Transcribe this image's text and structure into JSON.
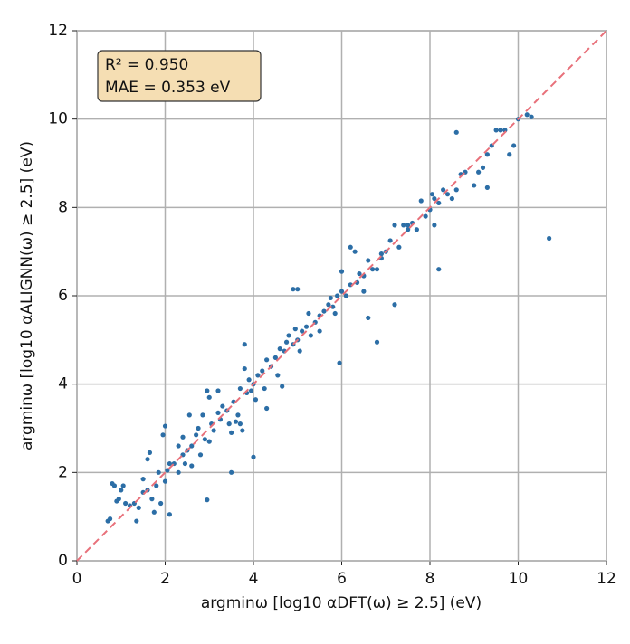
{
  "chart_data": {
    "type": "scatter",
    "xlabel": "argminω [log10 αDFT(ω) ≥ 2.5] (eV)",
    "ylabel": "argminω [log10 αALIGNN(ω) ≥ 2.5] (eV)",
    "annotations": [
      "R² = 0.950",
      "MAE = 0.353 eV"
    ],
    "xlim": [
      0,
      12
    ],
    "ylim": [
      0,
      12
    ],
    "xticks": [
      0,
      2,
      4,
      6,
      8,
      10,
      12
    ],
    "yticks": [
      0,
      2,
      4,
      6,
      8,
      10,
      12
    ],
    "grid": true,
    "color": "#2c6ea6",
    "reference_color": "#e8707a",
    "x": [
      0.7,
      0.75,
      0.8,
      0.85,
      0.95,
      1.0,
      1.05,
      0.9,
      1.1,
      1.2,
      1.3,
      1.35,
      1.4,
      1.5,
      1.5,
      1.6,
      1.6,
      1.65,
      1.7,
      1.75,
      1.8,
      1.85,
      1.9,
      1.95,
      2.0,
      2.0,
      2.05,
      2.1,
      2.1,
      2.2,
      2.3,
      2.3,
      2.4,
      2.45,
      2.5,
      2.55,
      2.6,
      2.6,
      2.7,
      2.75,
      2.8,
      2.85,
      2.9,
      2.95,
      3.0,
      3.0,
      3.05,
      3.1,
      3.2,
      3.25,
      3.3,
      3.4,
      3.45,
      3.5,
      3.55,
      3.6,
      3.65,
      3.7,
      3.7,
      3.75,
      3.8,
      3.8,
      3.85,
      3.9,
      3.95,
      4.0,
      4.05,
      4.1,
      4.2,
      4.25,
      4.3,
      4.4,
      4.5,
      4.55,
      4.6,
      4.65,
      4.7,
      4.75,
      4.8,
      4.9,
      4.95,
      5.0,
      5.05,
      5.1,
      5.2,
      5.25,
      5.3,
      5.4,
      5.5,
      5.5,
      5.6,
      5.7,
      5.8,
      5.85,
      5.9,
      6.0,
      6.0,
      6.1,
      6.2,
      6.3,
      6.35,
      6.4,
      6.5,
      6.5,
      6.6,
      6.7,
      6.8,
      6.9,
      7.0,
      7.1,
      7.2,
      7.3,
      7.4,
      7.5,
      7.6,
      7.7,
      7.8,
      7.9,
      8.0,
      8.05,
      8.1,
      8.2,
      8.3,
      8.4,
      8.5,
      8.6,
      8.7,
      8.8,
      9.0,
      9.3,
      9.4,
      9.7,
      10.0,
      8.1,
      7.5,
      6.9,
      6.2,
      4.3,
      3.2,
      2.4,
      5.75,
      10.7,
      8.2,
      9.3,
      7.2,
      6.8,
      6.6,
      5.95,
      4.0,
      3.5,
      2.95,
      8.6,
      4.9,
      5.0,
      9.9,
      10.2,
      10.3,
      9.6,
      9.5,
      9.8,
      9.1,
      9.2
    ],
    "y": [
      0.9,
      0.95,
      1.75,
      1.7,
      1.4,
      1.6,
      1.7,
      1.35,
      1.3,
      1.25,
      1.3,
      0.9,
      1.2,
      1.85,
      1.55,
      1.6,
      2.3,
      2.45,
      1.4,
      1.1,
      1.7,
      2.0,
      1.3,
      2.85,
      3.05,
      1.8,
      2.05,
      2.2,
      1.05,
      2.2,
      2.0,
      2.6,
      2.4,
      2.2,
      2.5,
      3.3,
      2.6,
      2.15,
      2.85,
      3.0,
      2.4,
      3.3,
      2.75,
      3.85,
      3.7,
      2.7,
      3.1,
      2.95,
      3.35,
      3.2,
      3.5,
      3.4,
      3.1,
      2.9,
      3.6,
      3.15,
      3.3,
      3.9,
      3.1,
      2.95,
      4.35,
      4.9,
      3.8,
      4.1,
      3.85,
      4.0,
      3.65,
      4.2,
      4.3,
      3.9,
      4.55,
      4.4,
      4.6,
      4.2,
      4.8,
      3.95,
      4.75,
      4.95,
      5.1,
      4.9,
      5.25,
      5.0,
      4.75,
      5.2,
      5.3,
      5.6,
      5.1,
      5.4,
      5.55,
      5.2,
      5.65,
      5.8,
      5.75,
      5.6,
      6.0,
      6.1,
      6.55,
      6.0,
      6.25,
      7.0,
      6.3,
      6.5,
      6.45,
      6.1,
      6.8,
      6.6,
      6.6,
      6.95,
      7.0,
      7.25,
      7.6,
      7.1,
      7.6,
      7.5,
      7.65,
      7.5,
      8.15,
      7.8,
      7.95,
      8.3,
      8.2,
      8.1,
      8.4,
      8.3,
      8.2,
      8.4,
      8.75,
      8.8,
      8.5,
      9.2,
      9.4,
      9.75,
      10.0,
      7.6,
      7.6,
      6.85,
      7.1,
      3.45,
      3.85,
      2.8,
      5.95,
      7.3,
      6.6,
      8.45,
      5.8,
      4.95,
      5.5,
      4.48,
      2.35,
      2.0,
      1.38,
      9.7,
      6.15,
      6.15,
      9.4,
      10.1,
      10.05,
      9.75,
      9.75,
      9.2,
      8.8,
      8.9
    ]
  }
}
